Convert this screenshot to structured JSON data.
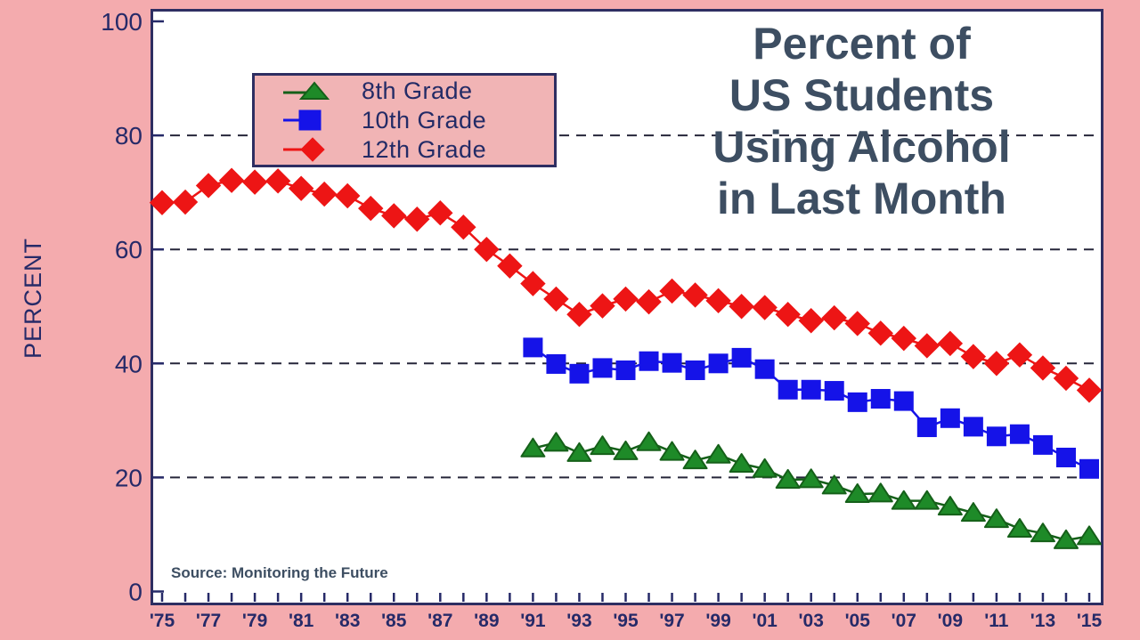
{
  "page": {
    "background": "#f4abae"
  },
  "title_lines": [
    "Percent of",
    "US Students",
    "Using Alcohol",
    "in Last Month"
  ],
  "legend": {
    "items": [
      {
        "label": "8th Grade",
        "marker": "triangle",
        "color": "#1e8a28",
        "line_color": "#156019"
      },
      {
        "label": "10th Grade",
        "marker": "square",
        "color": "#1513e8",
        "line_color": "#1513e8"
      },
      {
        "label": "12th Grade",
        "marker": "diamond",
        "color": "#ed1515",
        "line_color": "#ed1515"
      }
    ]
  },
  "chart_data": {
    "type": "line",
    "title": "Percent of US Students Using Alcohol in Last Month",
    "xlabel": "",
    "ylabel": "PERCENT",
    "source": "Source: Monitoring the Future",
    "ylim": [
      0,
      100
    ],
    "x_range": [
      1975,
      2015
    ],
    "yticks": [
      100,
      80,
      60,
      40,
      20,
      0
    ],
    "gridlines_at": [
      80,
      60,
      40,
      20
    ],
    "grid": "dashed horizontal",
    "legend_position": "upper left",
    "xtick_labels": [
      "'75",
      "'77",
      "'79",
      "'81",
      "'83",
      "'85",
      "'87",
      "'89",
      "'91",
      "'93",
      "'95",
      "'97",
      "'99",
      "'01",
      "'03",
      "'05",
      "'07",
      "'09",
      "'11",
      "'13",
      "'15"
    ],
    "xtick_label_years": [
      1975,
      1977,
      1979,
      1981,
      1983,
      1985,
      1987,
      1989,
      1991,
      1993,
      1995,
      1997,
      1999,
      2001,
      2003,
      2005,
      2007,
      2009,
      2011,
      2013,
      2015
    ],
    "series": [
      {
        "name": "12th Grade",
        "marker": "diamond",
        "color": "#ed1515",
        "line_color": "#ed1515",
        "start_year": 1975,
        "values": [
          68.2,
          68.3,
          71.2,
          72.1,
          71.8,
          72.0,
          70.7,
          69.7,
          69.4,
          67.2,
          65.9,
          65.3,
          66.4,
          63.9,
          60.0,
          57.1,
          54.0,
          51.3,
          48.6,
          50.1,
          51.3,
          50.8,
          52.7,
          52.0,
          51.0,
          50.0,
          49.8,
          48.6,
          47.5,
          48.0,
          47.0,
          45.3,
          44.4,
          43.1,
          43.5,
          41.2,
          40.0,
          41.5,
          39.2,
          37.4,
          35.3
        ]
      },
      {
        "name": "10th Grade",
        "marker": "square",
        "color": "#1513e8",
        "line_color": "#1513e8",
        "start_year": 1991,
        "values": [
          42.8,
          39.9,
          38.2,
          39.2,
          38.8,
          40.4,
          40.1,
          38.8,
          40.0,
          41.0,
          39.0,
          35.4,
          35.4,
          35.2,
          33.2,
          33.8,
          33.4,
          28.8,
          30.4,
          28.9,
          27.2,
          27.6,
          25.7,
          23.5,
          21.5
        ]
      },
      {
        "name": "8th Grade",
        "marker": "triangle",
        "color": "#1e8a28",
        "line_color": "#156019",
        "start_year": 1991,
        "values": [
          25.1,
          26.1,
          24.3,
          25.5,
          24.6,
          26.2,
          24.5,
          23.0,
          24.0,
          22.4,
          21.5,
          19.6,
          19.7,
          18.6,
          17.1,
          17.2,
          15.9,
          15.9,
          14.9,
          13.8,
          12.7,
          11.0,
          10.2,
          9.0,
          9.7
        ]
      }
    ],
    "axis_color": "#262a68",
    "gridline_color": "#26263a",
    "title_color": "#3d4e62"
  }
}
